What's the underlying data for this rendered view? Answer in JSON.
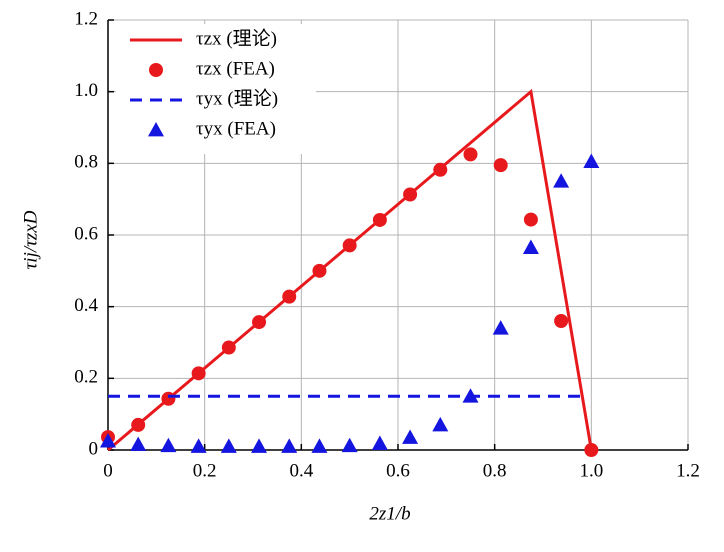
{
  "chart_data": {
    "type": "line",
    "xlabel": "2z1/b",
    "ylabel": "τij/τzxD",
    "xlim": [
      0,
      1.2
    ],
    "ylim": [
      0,
      1.2
    ],
    "xticks": [
      0,
      0.2,
      0.4,
      0.6,
      0.8,
      {
        "value": 1,
        "label": "1.0"
      },
      1.2
    ],
    "yticks": [
      0,
      0.2,
      0.4,
      0.6,
      0.8,
      {
        "value": 1,
        "label": "1.0"
      },
      1.2
    ],
    "grid": true,
    "legend": "top-left",
    "series": [
      {
        "name": "τzx (理论)",
        "color": "#e8191c",
        "style": "solid",
        "x": [
          0,
          0.875,
          1.0
        ],
        "values": [
          0,
          1.0,
          0
        ]
      },
      {
        "name": "τzx (FEA)",
        "color": "#e8191c",
        "style": "circle",
        "x": [
          0,
          0.0625,
          0.125,
          0.1875,
          0.25,
          0.3125,
          0.375,
          0.4375,
          0.5,
          0.5625,
          0.625,
          0.6875,
          0.75,
          0.8125,
          0.875,
          0.9375,
          1.0
        ],
        "values": [
          0.036,
          0.07,
          0.143,
          0.214,
          0.286,
          0.357,
          0.428,
          0.5,
          0.571,
          0.642,
          0.713,
          0.782,
          0.825,
          0.795,
          0.643,
          0.36,
          0
        ]
      },
      {
        "name": "τyx (理论)",
        "color": "#1515e0",
        "style": "dashed",
        "x": [
          0,
          0.98
        ],
        "values": [
          0.15,
          0.15
        ]
      },
      {
        "name": "τyx (FEA)",
        "color": "#1515e0",
        "style": "triangle",
        "x": [
          0,
          0.0625,
          0.125,
          0.1875,
          0.25,
          0.3125,
          0.375,
          0.4375,
          0.5,
          0.5625,
          0.625,
          0.6875,
          0.75,
          0.8125,
          0.875,
          0.9375,
          1.0
        ],
        "values": [
          0.025,
          0.015,
          0.012,
          0.01,
          0.01,
          0.01,
          0.01,
          0.01,
          0.012,
          0.018,
          0.035,
          0.07,
          0.15,
          0.34,
          0.565,
          0.75,
          0.805
        ]
      }
    ]
  }
}
